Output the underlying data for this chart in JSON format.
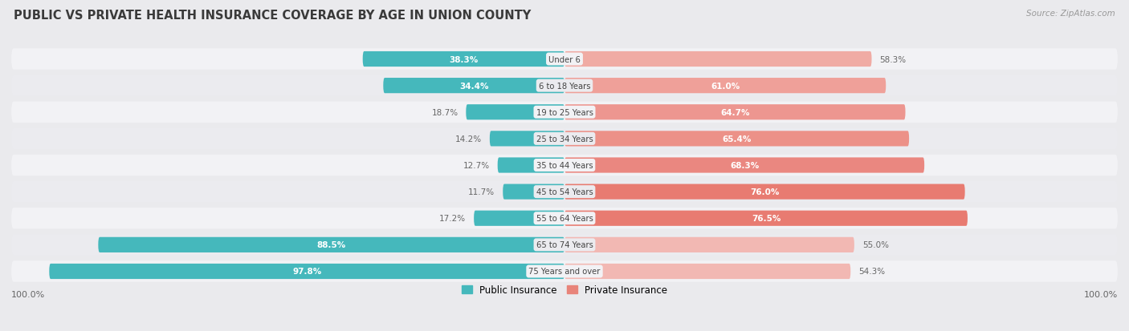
{
  "title": "PUBLIC VS PRIVATE HEALTH INSURANCE COVERAGE BY AGE IN UNION COUNTY",
  "source": "Source: ZipAtlas.com",
  "categories": [
    "Under 6",
    "6 to 18 Years",
    "19 to 25 Years",
    "25 to 34 Years",
    "35 to 44 Years",
    "45 to 54 Years",
    "55 to 64 Years",
    "65 to 74 Years",
    "75 Years and over"
  ],
  "public_values": [
    38.3,
    34.4,
    18.7,
    14.2,
    12.7,
    11.7,
    17.2,
    88.5,
    97.8
  ],
  "private_values": [
    58.3,
    61.0,
    64.7,
    65.4,
    68.3,
    76.0,
    76.5,
    55.0,
    54.3
  ],
  "public_color": "#45B8BC",
  "private_colors": [
    "#F0ABA4",
    "#EFA099",
    "#ED9690",
    "#EC9188",
    "#EA8780",
    "#E87B71",
    "#E87B71",
    "#F2B8B3",
    "#F2B8B3"
  ],
  "private_label_inside_threshold": 60,
  "public_label": "Public Insurance",
  "private_label": "Private Insurance",
  "bg_color": "#EAEAED",
  "row_bg_even": "#F2F2F5",
  "row_bg_odd": "#EBEBEF",
  "title_color": "#3A3A3A",
  "source_color": "#999999",
  "label_inside_color": "#FFFFFF",
  "label_outside_color": "#666666",
  "scale": 100,
  "center_label_bg": "#F2F2F5"
}
